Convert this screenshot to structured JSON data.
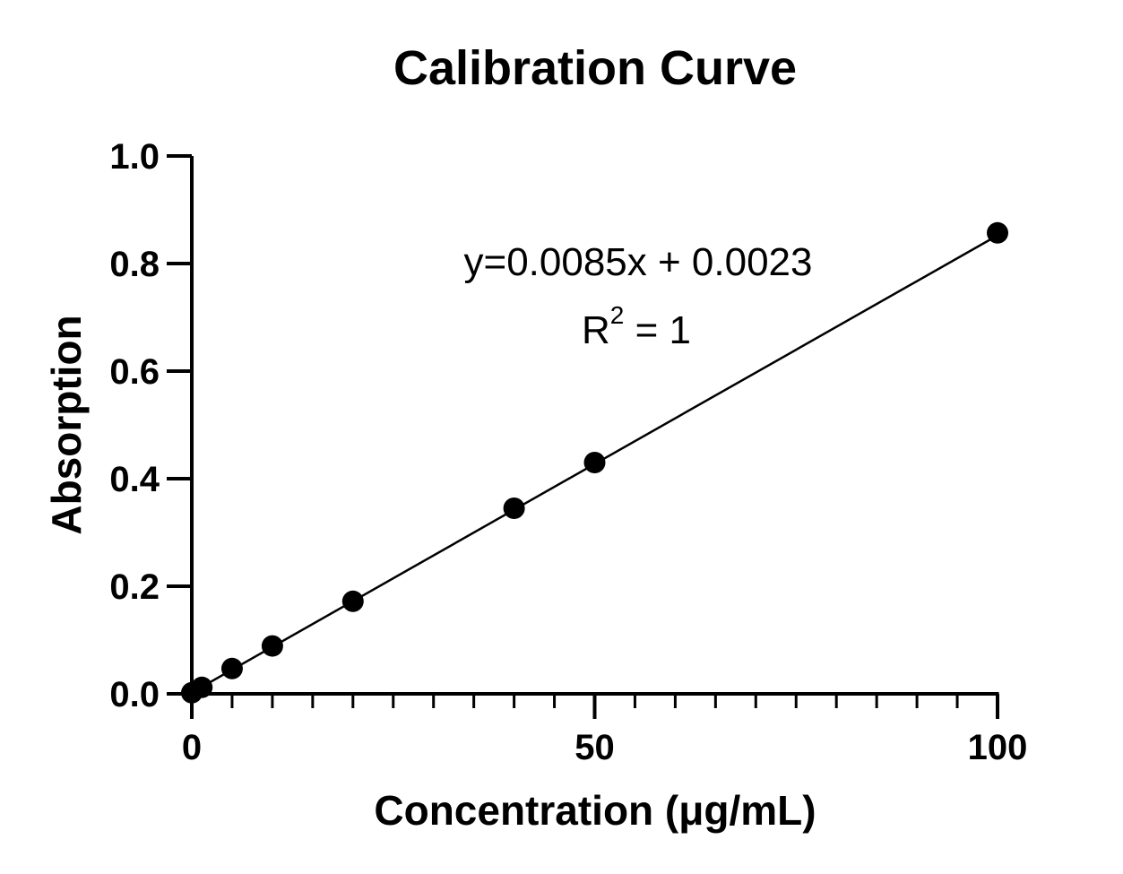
{
  "chart_data": {
    "type": "scatter",
    "title": "Calibration Curve",
    "xlabel": "Concentration (μg/mL)",
    "ylabel": "Absorption",
    "xlim": [
      0,
      100
    ],
    "ylim": [
      0,
      1.0
    ],
    "x_ticks": [
      0,
      50,
      100
    ],
    "x_tick_labels": [
      "0",
      "50",
      "100"
    ],
    "x_minor_step": 5,
    "y_ticks": [
      0.0,
      0.2,
      0.4,
      0.6,
      0.8,
      1.0
    ],
    "y_tick_labels": [
      "0.0",
      "0.2",
      "0.4",
      "0.6",
      "0.8",
      "1.0"
    ],
    "grid": false,
    "series": [
      {
        "x": [
          0,
          1.25,
          5,
          10,
          20,
          40,
          50,
          100
        ],
        "y": [
          0.002,
          0.012,
          0.047,
          0.089,
          0.172,
          0.345,
          0.43,
          0.857
        ]
      }
    ],
    "fit_line": {
      "slope": 0.0085,
      "intercept": 0.0023,
      "x_range": [
        0,
        100
      ]
    },
    "annotations": {
      "equation": "y=0.0085x + 0.0023",
      "r2_prefix": "R",
      "r2_superscript": "2",
      "r2_suffix": " = 1"
    },
    "colors": {
      "marker": "#000000",
      "line": "#000000",
      "axis": "#000000"
    }
  }
}
